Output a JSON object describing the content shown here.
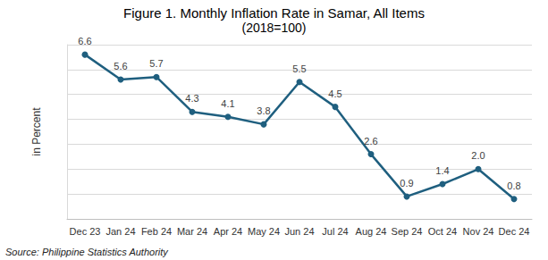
{
  "chart_data": {
    "type": "line",
    "title": "Figure 1. Monthly Inflation Rate in Samar, All Items",
    "subtitle": "(2018=100)",
    "ylabel": "in Percent",
    "source": "Source: Philippine Statistics Authority",
    "categories": [
      "Dec 23",
      "Jan 24",
      "Feb 24",
      "Mar 24",
      "Apr 24",
      "May 24",
      "Jun 24",
      "Jul 24",
      "Aug 24",
      "Sep 24",
      "Oct 24",
      "Nov 24",
      "Dec 24"
    ],
    "values": [
      6.6,
      5.6,
      5.7,
      4.3,
      4.1,
      3.8,
      5.5,
      4.5,
      2.6,
      0.9,
      1.4,
      2.0,
      0.8
    ],
    "value_labels": [
      "6.6",
      "5.6",
      "5.7",
      "4.3",
      "4.1",
      "3.8",
      "5.5",
      "4.5",
      "2.6",
      "0.9",
      "1.4",
      "2.0",
      "0.8"
    ],
    "color": "#1f5f7f",
    "marker": "circle",
    "ylim": [
      0,
      7
    ],
    "yticks": [
      0,
      1,
      2,
      3,
      4,
      5,
      6,
      7
    ],
    "grid": true,
    "data_labels": true,
    "tick_labels": "x"
  }
}
